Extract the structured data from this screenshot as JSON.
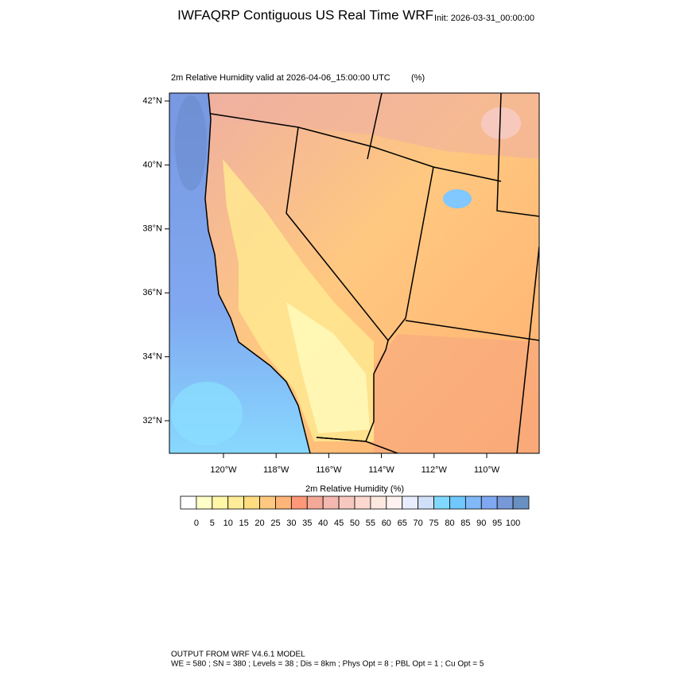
{
  "header": {
    "title": "IWFAQRP Contiguous US Real Time WRF",
    "init": "Init: 2026-03-31_00:00:00"
  },
  "plot": {
    "title": "2m Relative Humidity valid at 2026-04-06_15:00:00 UTC",
    "units": "(%)",
    "lat_labels": [
      "42°N",
      "40°N",
      "38°N",
      "36°N",
      "34°N",
      "32°N"
    ],
    "lon_labels": [
      "120°W",
      "118°W",
      "116°W",
      "114°W",
      "112°W",
      "110°W"
    ]
  },
  "colorbar": {
    "title": "2m Relative Humidity  (%)",
    "colors": [
      "#ffffff",
      "#ffffc8",
      "#fff6a8",
      "#ffec98",
      "#ffdc80",
      "#ffc880",
      "#ffb478",
      "#ff9878",
      "#f4a898",
      "#f4b8b0",
      "#f8c8c0",
      "#fcd8d0",
      "#fde8e0",
      "#fff2f0",
      "#e8ecff",
      "#d0e0f8",
      "#80d8ff",
      "#70c8ff",
      "#80b8f8",
      "#80a8f0",
      "#7898d8",
      "#6890c0"
    ],
    "ticks": [
      0,
      5,
      10,
      15,
      20,
      25,
      30,
      35,
      40,
      45,
      50,
      55,
      60,
      65,
      70,
      75,
      80,
      85,
      90,
      95,
      100
    ]
  },
  "footer": {
    "model": "OUTPUT FROM WRF V4.6.1 MODEL",
    "settings": "WE = 580 ; SN = 380 ; Levels = 38 ; Dis = 8km ; Phys Opt = 8 ; PBL Opt = 1 ; Cu Opt = 5"
  }
}
